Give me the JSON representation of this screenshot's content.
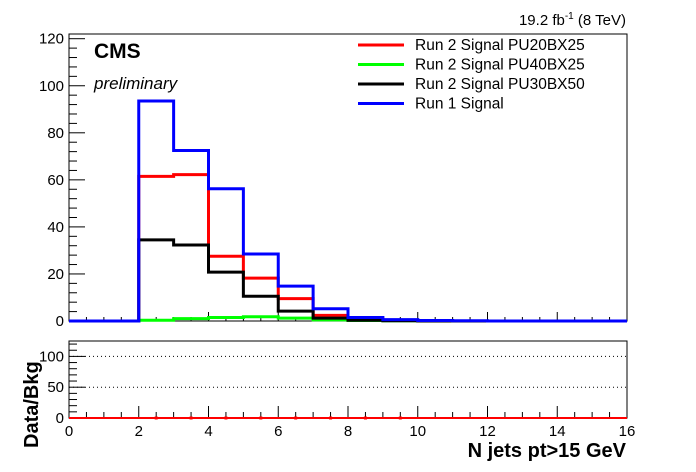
{
  "chart_data": [
    {
      "type": "line",
      "style": "step-histogram",
      "bin_edges": [
        0,
        1,
        2,
        3,
        4,
        5,
        6,
        7,
        8,
        9,
        10,
        11,
        12,
        13,
        14,
        15,
        16
      ],
      "xlim": [
        0,
        16
      ],
      "ylim": [
        0,
        122
      ],
      "yticks": [
        0,
        20,
        40,
        60,
        80,
        100,
        120
      ],
      "tick_labels_y": [
        "0",
        "20",
        "40",
        "60",
        "80",
        "100",
        "120"
      ],
      "series": [
        {
          "name": "Run 2 Signal PU20BX25",
          "color": "#ff0000",
          "values": [
            0,
            0,
            61.5,
            62.2,
            27.5,
            18.2,
            9.5,
            2.4,
            0.9,
            0.3,
            0.1,
            0,
            0,
            0,
            0,
            0
          ]
        },
        {
          "name": "Run 2 Signal PU40BX25",
          "color": "#00ff00",
          "values": [
            0,
            0,
            0.3,
            1.0,
            1.5,
            1.8,
            1.2,
            0.5,
            0.2,
            0.1,
            0,
            0,
            0,
            0,
            0,
            0
          ]
        },
        {
          "name": "Run 2 Signal PU30BX50",
          "color": "#000000",
          "values": [
            0,
            0,
            34.5,
            32.3,
            20.8,
            10.5,
            4.2,
            1.2,
            0.3,
            0.1,
            0,
            0,
            0,
            0,
            0,
            0
          ]
        },
        {
          "name": "Run 1 Signal",
          "color": "#0000ff",
          "values": [
            0,
            0,
            93.5,
            72.5,
            56.2,
            28.5,
            14.8,
            5.2,
            1.5,
            0.6,
            0.2,
            0.1,
            0,
            0,
            0,
            0
          ]
        }
      ],
      "legend_position": "top-right",
      "lumi_label": "19.2 fb",
      "lumi_sup": "-1",
      "lumi_energy": " (8 TeV)",
      "cms_label": "CMS",
      "prelim_label": "preliminary"
    },
    {
      "type": "line",
      "style": "ratio",
      "xlim": [
        0,
        16
      ],
      "ylim": [
        0,
        125
      ],
      "yticks": [
        0,
        50,
        100
      ],
      "tick_labels_y": [
        "0",
        "50",
        "100"
      ],
      "gridlines_y": [
        50,
        100
      ],
      "xticks": [
        0,
        2,
        4,
        6,
        8,
        10,
        12,
        14,
        16
      ],
      "tick_labels_x": [
        "0",
        "2",
        "4",
        "6",
        "8",
        "10",
        "12",
        "14",
        "16"
      ],
      "ylabel": "Data/Bkg",
      "xlabel": "N jets pt>15 GeV",
      "series": [
        {
          "color": "#ff0000",
          "values": [
            0,
            0,
            0,
            0,
            0,
            0,
            0,
            0,
            0,
            0,
            0,
            0,
            0,
            0,
            0,
            0
          ],
          "points_x": [
            2.5,
            3.5,
            4.5,
            5.5,
            6.5,
            7.5,
            8.5,
            9.5
          ]
        }
      ]
    }
  ]
}
